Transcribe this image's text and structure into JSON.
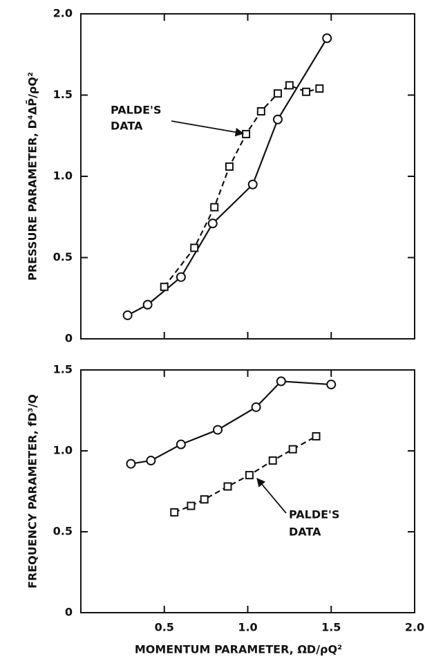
{
  "chart_data": [
    {
      "type": "line",
      "ylabel": "PRESSURE PARAMETER, D⁴ΔP̄/ρQ²",
      "annotation": [
        "PALDE'S",
        "DATA"
      ],
      "xlim": [
        0,
        2.0
      ],
      "xticks": [
        0,
        0.5,
        1,
        1.5,
        2
      ],
      "ylim": [
        0,
        2.0
      ],
      "yticks": [
        0,
        {
          "value": 0.5,
          "label": "0.5"
        },
        {
          "value": 1,
          "label": "1.0"
        },
        {
          "value": 1.5,
          "label": "1.5"
        },
        {
          "value": 2,
          "label": "2.0"
        }
      ],
      "series": [
        {
          "marker": "circle",
          "dashed": false,
          "color": "#111111",
          "x": [
            0.28,
            0.4,
            0.6,
            0.79,
            1.03,
            1.18,
            1.475
          ],
          "values": [
            0.145,
            0.21,
            0.38,
            0.71,
            0.95,
            1.35,
            1.85
          ]
        },
        {
          "marker": "square",
          "dashed": true,
          "color": "#111111",
          "x": [
            0.5,
            0.68,
            0.8,
            0.89,
            0.99,
            1.08,
            1.18,
            1.25,
            1.35,
            1.43
          ],
          "values": [
            0.32,
            0.56,
            0.81,
            1.06,
            1.26,
            1.4,
            1.51,
            1.56,
            1.52,
            1.54
          ]
        }
      ]
    },
    {
      "type": "line",
      "ylabel": "FREQUENCY PARAMETER, fD³/Q",
      "xlabel": "MOMENTUM PARAMETER, ΩD/ρQ²",
      "annotation": [
        "PALDE'S",
        "DATA"
      ],
      "xlim": [
        0,
        2.0
      ],
      "xticks": [
        {
          "value": 0.5,
          "label": "0.5"
        },
        {
          "value": 1,
          "label": "1.0"
        },
        {
          "value": 1.5,
          "label": "1.5"
        },
        {
          "value": 2,
          "label": "2.0"
        }
      ],
      "ylim": [
        0,
        1.5
      ],
      "yticks": [
        0,
        {
          "value": 0.5,
          "label": "0.5"
        },
        {
          "value": 1,
          "label": "1.0"
        },
        {
          "value": 1.5,
          "label": "1.5"
        }
      ],
      "series": [
        {
          "marker": "circle",
          "dashed": false,
          "color": "#111111",
          "x": [
            0.3,
            0.42,
            0.6,
            0.82,
            1.05,
            1.2,
            1.5
          ],
          "values": [
            0.92,
            0.94,
            1.04,
            1.13,
            1.27,
            1.43,
            1.41
          ]
        },
        {
          "marker": "square",
          "dashed": true,
          "color": "#111111",
          "x": [
            0.56,
            0.66,
            0.74,
            0.88,
            1.01,
            1.15,
            1.27,
            1.41
          ],
          "values": [
            0.62,
            0.66,
            0.7,
            0.78,
            0.85,
            0.94,
            1.01,
            1.09
          ]
        }
      ]
    }
  ]
}
